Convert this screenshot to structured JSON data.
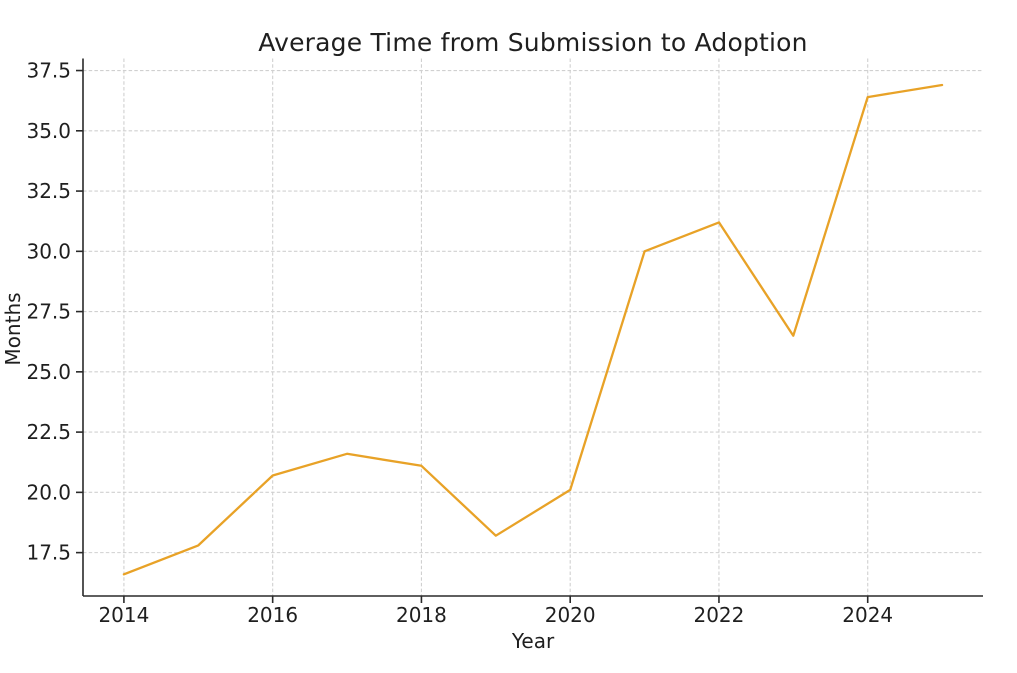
{
  "figure": {
    "background": "#ffffff"
  },
  "chart_data": {
    "type": "line",
    "title": "Average Time from Submission to Adoption",
    "xlabel": "Year",
    "ylabel": "Months",
    "x": [
      2014,
      2015,
      2016,
      2017,
      2018,
      2019,
      2020,
      2021,
      2022,
      2023,
      2024,
      2025
    ],
    "values": [
      16.6,
      17.8,
      20.7,
      21.6,
      21.1,
      18.2,
      20.1,
      30.0,
      31.2,
      26.5,
      36.4,
      36.9
    ],
    "x_tick_positions": [
      2014,
      2016,
      2018,
      2020,
      2022,
      2024
    ],
    "x_tick_labels": [
      "2014",
      "2016",
      "2018",
      "2020",
      "2022",
      "2024"
    ],
    "y_tick_positions": [
      17.5,
      20.0,
      22.5,
      25.0,
      27.5,
      30.0,
      32.5,
      35.0,
      37.5
    ],
    "y_tick_labels": [
      "17.5",
      "20.0",
      "22.5",
      "25.0",
      "27.5",
      "30.0",
      "32.5",
      "35.0",
      "37.5"
    ],
    "xlim": [
      2013.45,
      2025.55
    ],
    "ylim": [
      15.7,
      38.0
    ],
    "grid": true,
    "legend": null,
    "line_color": "#E8A227",
    "grid_color": "#d0d0d0",
    "axis_color": "#2a2a2a",
    "text_color": "#1f1f1f"
  }
}
